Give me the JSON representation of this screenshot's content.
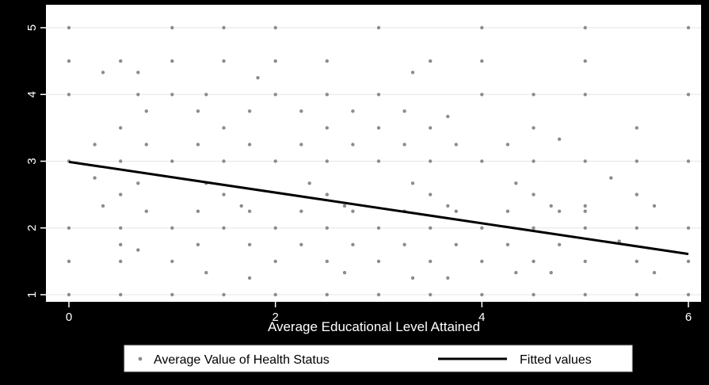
{
  "chart_data": {
    "type": "scatter",
    "title": "",
    "xlabel": "Average Educational Level Attained",
    "ylabel": "",
    "xlim": [
      0,
      6
    ],
    "ylim": [
      1,
      5
    ],
    "x_ticks": [
      "0",
      "2",
      "4",
      "6"
    ],
    "y_ticks": [
      "1",
      "2",
      "3",
      "4",
      "5"
    ],
    "grid": true,
    "legend_position": "bottom",
    "colors": {
      "background": "#000000",
      "plot": "#ffffff",
      "points": "#8c8c8c",
      "fit": "#000000",
      "grid": "#e6e6e6"
    },
    "series": [
      {
        "name": "Average Value of Health Status",
        "kind": "scatter",
        "points": [
          [
            0,
            5
          ],
          [
            1,
            5
          ],
          [
            1.5,
            5
          ],
          [
            2,
            5
          ],
          [
            3,
            5
          ],
          [
            4,
            5
          ],
          [
            5,
            5
          ],
          [
            6,
            5
          ],
          [
            0,
            4.5
          ],
          [
            0.5,
            4.5
          ],
          [
            1,
            4.5
          ],
          [
            1.5,
            4.5
          ],
          [
            2,
            4.5
          ],
          [
            2.5,
            4.5
          ],
          [
            3.5,
            4.5
          ],
          [
            4,
            4.5
          ],
          [
            5,
            4.5
          ],
          [
            0.33,
            4.33
          ],
          [
            0.67,
            4.33
          ],
          [
            1.83,
            4.25
          ],
          [
            3.33,
            4.33
          ],
          [
            0,
            4
          ],
          [
            0.67,
            4
          ],
          [
            1,
            4
          ],
          [
            1.33,
            4
          ],
          [
            2,
            4
          ],
          [
            2.5,
            4
          ],
          [
            3,
            4
          ],
          [
            4,
            4
          ],
          [
            4.5,
            4
          ],
          [
            5,
            4
          ],
          [
            6,
            4
          ],
          [
            0,
            3
          ],
          [
            0.5,
            3
          ],
          [
            1,
            3
          ],
          [
            1.5,
            3
          ],
          [
            2,
            3
          ],
          [
            2.5,
            3
          ],
          [
            3,
            3
          ],
          [
            3.5,
            3
          ],
          [
            4,
            3
          ],
          [
            4.5,
            3
          ],
          [
            5,
            3
          ],
          [
            5.5,
            3
          ],
          [
            6,
            3
          ],
          [
            0,
            2
          ],
          [
            0.5,
            2
          ],
          [
            1,
            2
          ],
          [
            1.5,
            2
          ],
          [
            2,
            2
          ],
          [
            2.5,
            2
          ],
          [
            3,
            2
          ],
          [
            3.5,
            2
          ],
          [
            4,
            2
          ],
          [
            4.5,
            2
          ],
          [
            5,
            2
          ],
          [
            5.5,
            2
          ],
          [
            6,
            2
          ],
          [
            0,
            1.5
          ],
          [
            0.5,
            1.5
          ],
          [
            1,
            1.5
          ],
          [
            2,
            1.5
          ],
          [
            2.5,
            1.5
          ],
          [
            3,
            1.5
          ],
          [
            3.5,
            1.5
          ],
          [
            4,
            1.5
          ],
          [
            4.5,
            1.5
          ],
          [
            5,
            1.5
          ],
          [
            5.5,
            1.5
          ],
          [
            6,
            1.5
          ],
          [
            0.67,
            1.67
          ],
          [
            1.33,
            1.33
          ],
          [
            1.75,
            1.25
          ],
          [
            2.67,
            1.33
          ],
          [
            3.33,
            1.25
          ],
          [
            3.67,
            1.25
          ],
          [
            4.33,
            1.33
          ],
          [
            4.67,
            1.33
          ],
          [
            5.67,
            1.33
          ],
          [
            0,
            1
          ],
          [
            0.5,
            1
          ],
          [
            1,
            1
          ],
          [
            1.5,
            1
          ],
          [
            2,
            1
          ],
          [
            2.5,
            1
          ],
          [
            3,
            1
          ],
          [
            3.5,
            1
          ],
          [
            4,
            1
          ],
          [
            4.5,
            1
          ],
          [
            5,
            1
          ],
          [
            5.5,
            1
          ],
          [
            6,
            1
          ],
          [
            5.67,
            2.33
          ],
          [
            5.5,
            2.5
          ],
          [
            5.25,
            2.75
          ],
          [
            5.5,
            3.5
          ],
          [
            5.33,
            1.8
          ],
          [
            5,
            2.25
          ],
          [
            5,
            2.33
          ],
          [
            0.5,
            3.5
          ],
          [
            0.75,
            3.75
          ],
          [
            1.25,
            3.75
          ],
          [
            1.75,
            3.75
          ],
          [
            2.25,
            3.75
          ],
          [
            2.75,
            3.75
          ],
          [
            3.25,
            3.75
          ],
          [
            3.67,
            3.67
          ],
          [
            4.25,
            3.25
          ],
          [
            4.5,
            3.5
          ],
          [
            4.75,
            3.33
          ],
          [
            0.25,
            2.75
          ],
          [
            0.75,
            2.25
          ],
          [
            1.25,
            2.25
          ],
          [
            1.75,
            2.25
          ],
          [
            2.25,
            2.25
          ],
          [
            2.75,
            2.25
          ],
          [
            3.25,
            2.25
          ],
          [
            3.75,
            2.25
          ],
          [
            4.25,
            2.25
          ],
          [
            4.75,
            2.25
          ],
          [
            0.25,
            3.25
          ],
          [
            0.75,
            3.25
          ],
          [
            1.25,
            3.25
          ],
          [
            1.75,
            3.25
          ],
          [
            2.25,
            3.25
          ],
          [
            2.75,
            3.25
          ],
          [
            3.25,
            3.25
          ],
          [
            3.75,
            3.25
          ],
          [
            0.33,
            2.33
          ],
          [
            0.67,
            2.67
          ],
          [
            1.33,
            2.67
          ],
          [
            1.67,
            2.33
          ],
          [
            2.33,
            2.67
          ],
          [
            2.67,
            2.33
          ],
          [
            3.33,
            2.67
          ],
          [
            3.67,
            2.33
          ],
          [
            4.33,
            2.67
          ],
          [
            4.67,
            2.33
          ],
          [
            0.5,
            1.75
          ],
          [
            1.25,
            1.75
          ],
          [
            1.75,
            1.75
          ],
          [
            2.25,
            1.75
          ],
          [
            2.75,
            1.75
          ],
          [
            3.25,
            1.75
          ],
          [
            3.75,
            1.75
          ],
          [
            4.25,
            1.75
          ],
          [
            4.75,
            1.75
          ],
          [
            0.5,
            2.5
          ],
          [
            1.5,
            2.5
          ],
          [
            2.5,
            2.5
          ],
          [
            3.5,
            2.5
          ],
          [
            4.5,
            2.5
          ],
          [
            1.5,
            3.5
          ],
          [
            2.5,
            3.5
          ],
          [
            3,
            3.5
          ],
          [
            3.5,
            3.5
          ]
        ]
      },
      {
        "name": "Fitted values",
        "kind": "line",
        "points": [
          [
            0,
            2.99
          ],
          [
            6,
            1.61
          ]
        ]
      }
    ]
  }
}
